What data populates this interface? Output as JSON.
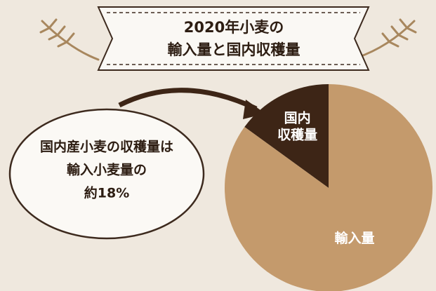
{
  "chart_data": {
    "type": "pie",
    "title": [
      "2020年小麦の",
      "輸入量と国内収穫量"
    ],
    "annotation": [
      "国内産小麦の収穫量は",
      "輸入小麦量の",
      "約18%"
    ],
    "categories": [
      [
        "国内",
        "収穫量"
      ],
      [
        "輸入量"
      ]
    ],
    "values": [
      15,
      85
    ],
    "colors": [
      "#3d2516",
      "#c49a6c"
    ],
    "label_colors": [
      "#ffffff",
      "#ffffff"
    ]
  }
}
